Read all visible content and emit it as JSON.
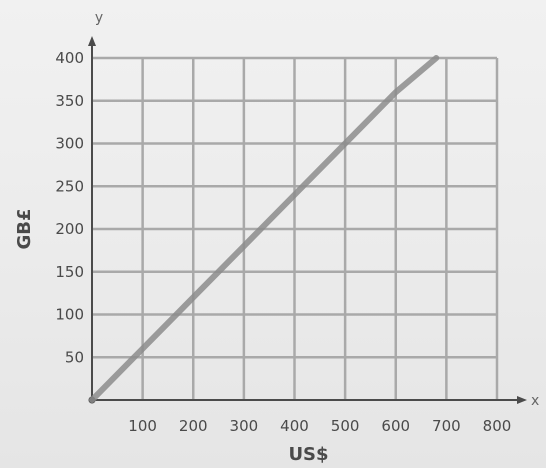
{
  "chart_data": {
    "type": "line",
    "title": "",
    "xlabel": "US$",
    "ylabel": "GB£",
    "x_axis_letter": "x",
    "y_axis_letter": "y",
    "xlim": [
      0,
      800
    ],
    "ylim": [
      0,
      400
    ],
    "x_ticks": [
      100,
      200,
      300,
      400,
      500,
      600,
      700,
      800
    ],
    "y_ticks": [
      50,
      100,
      150,
      200,
      250,
      300,
      350,
      400
    ],
    "grid": true,
    "legend": "none",
    "series": [
      {
        "x": [
          0,
          100,
          200,
          300,
          400,
          500,
          600,
          680
        ],
        "y": [
          0,
          60,
          120,
          180,
          240,
          300,
          360,
          400
        ],
        "color": "#8c8c8c"
      }
    ],
    "colors": {
      "grid": "#a9a9a9",
      "axis": "#4b4b4b",
      "text": "#4a4a4a"
    }
  }
}
